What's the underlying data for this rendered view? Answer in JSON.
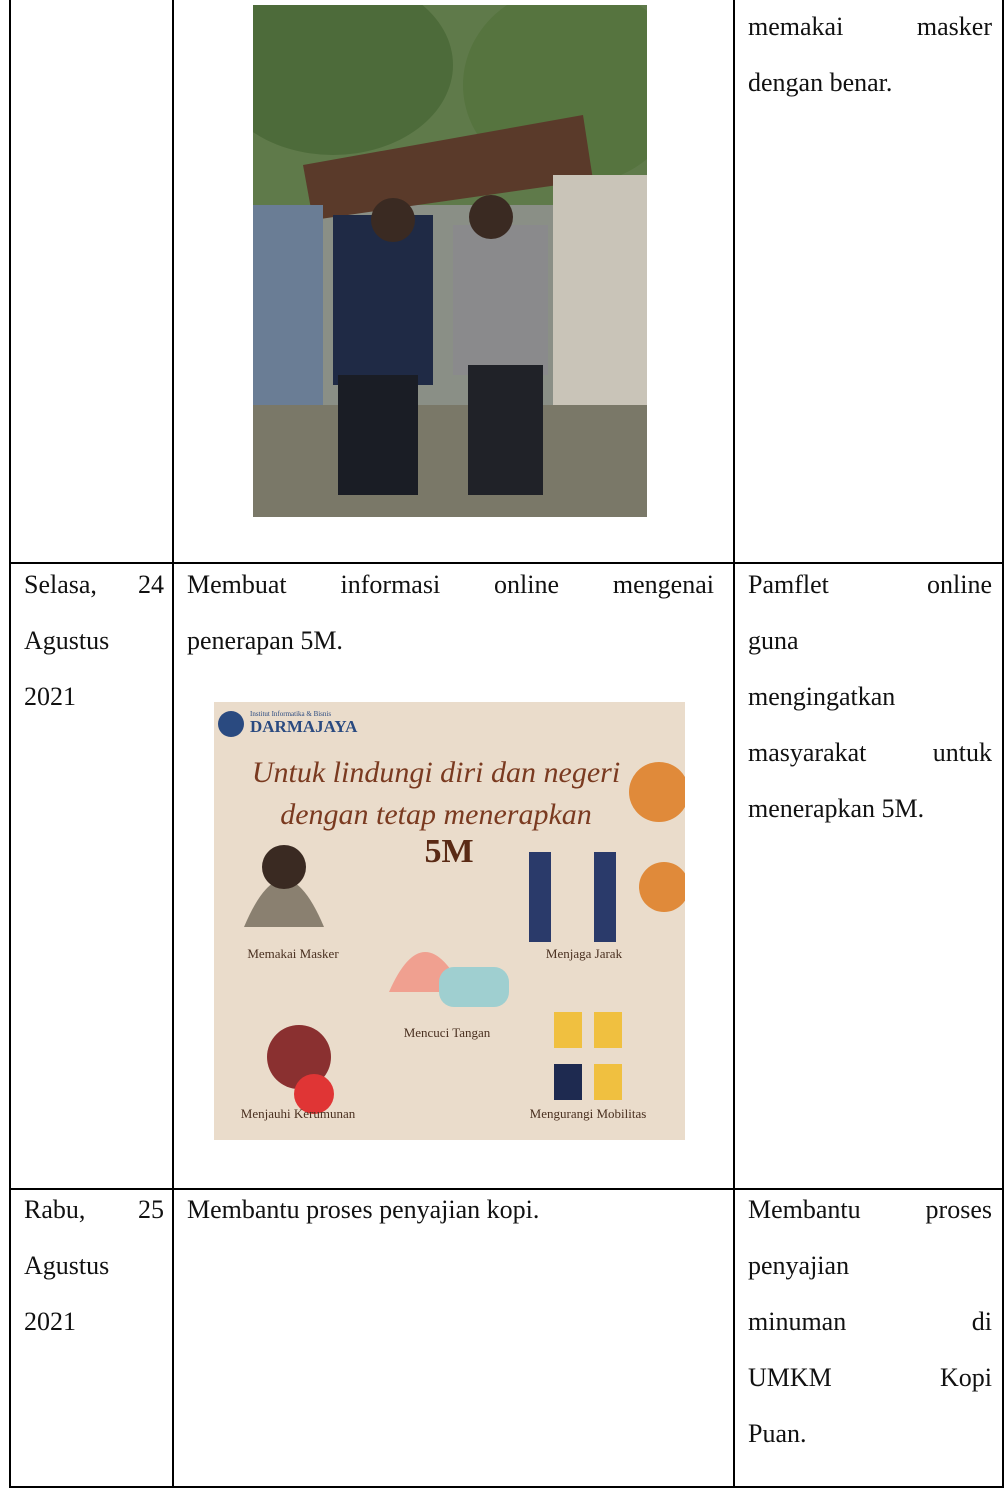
{
  "table": {
    "rows": [
      {
        "result": [
          "memakai masker",
          "dengan benar."
        ]
      },
      {
        "date": [
          "Selasa, 24",
          "Agustus",
          "2021"
        ],
        "activity": [
          "Membuat informasi online mengenai",
          "penerapan 5M."
        ],
        "pamphlet": {
          "institution": "Institut Informatika & Bisnis",
          "brand": "DARMAJAYA",
          "headline": [
            "Untuk lindungi diri dan negeri",
            "dengan tetap menerapkan"
          ],
          "emphasis": "5M",
          "items": [
            "Memakai Masker",
            "Menjaga Jarak",
            "Mencuci Tangan",
            "Menjauhi Kerumunan",
            "Mengurangi Mobilitas"
          ]
        },
        "result": [
          "Pamflet online",
          "guna",
          "mengingatkan",
          "masyarakat untuk",
          "menerapkan 5M."
        ]
      },
      {
        "date": [
          "Rabu, 25",
          "Agustus",
          "2021"
        ],
        "activity": [
          "Membantu proses penyajian kopi."
        ],
        "result": [
          "Membantu proses",
          "penyajian",
          "minuman di",
          "UMKM Kopi",
          "Puan."
        ]
      }
    ]
  }
}
